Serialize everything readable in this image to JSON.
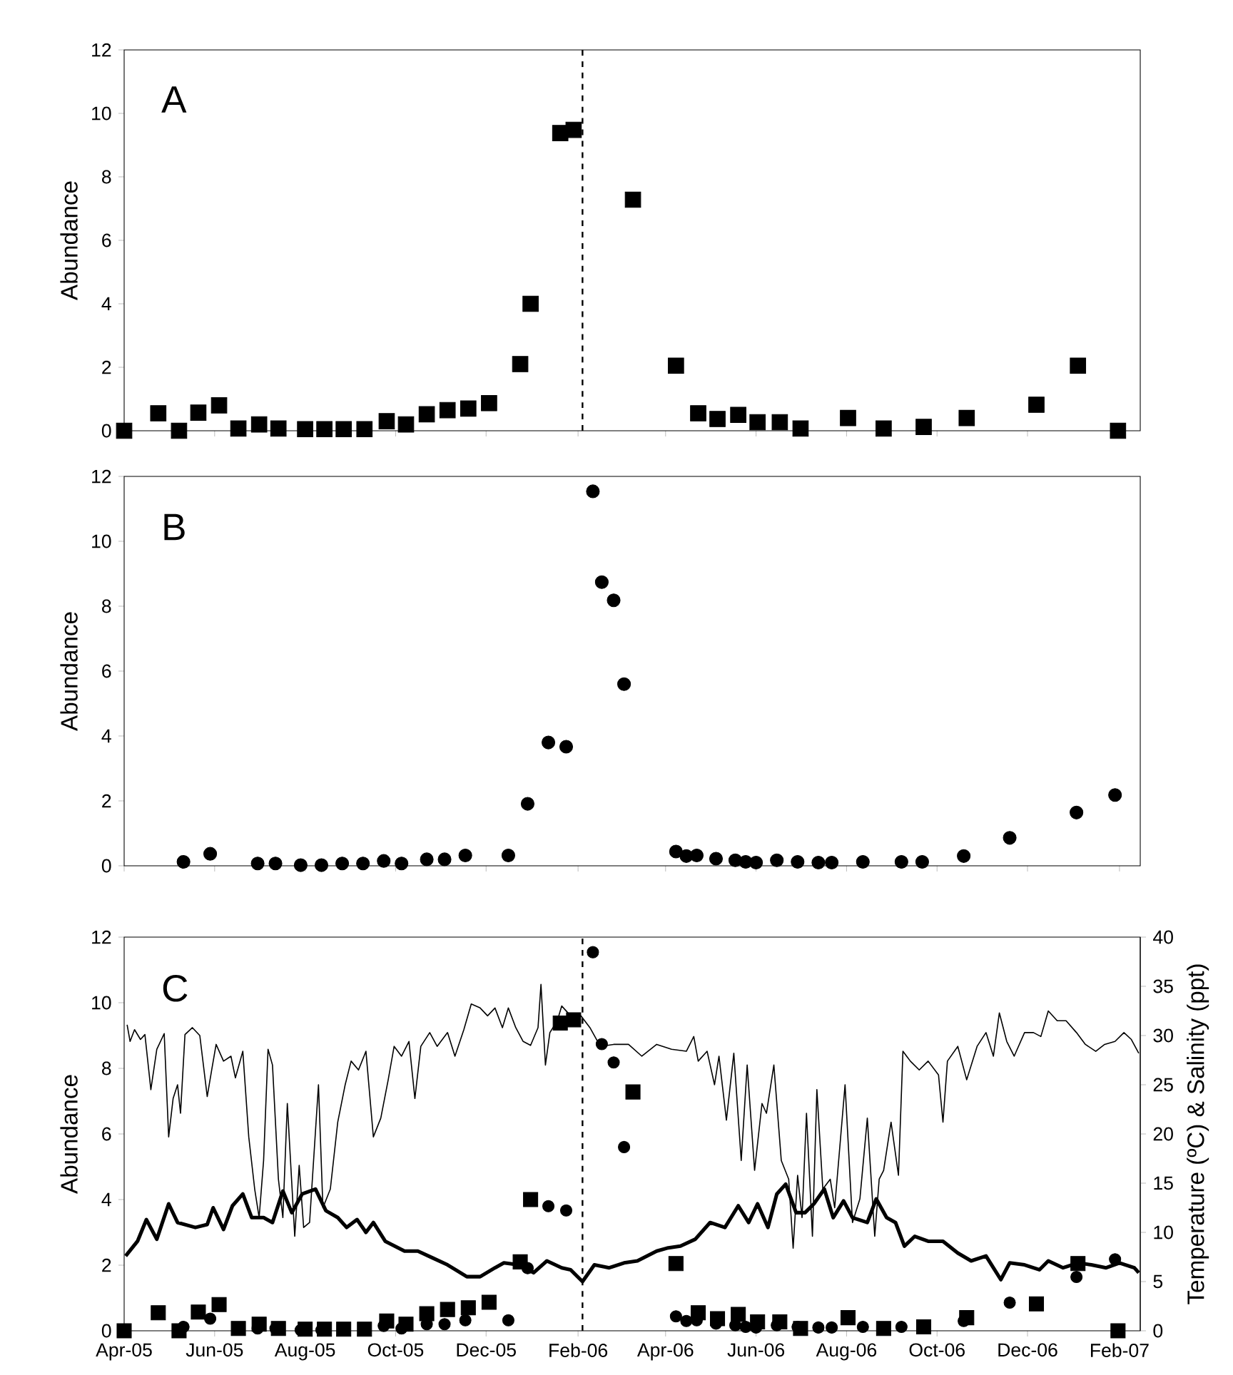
{
  "chart_data": [
    {
      "type": "scatter",
      "annotations": [
        "A"
      ],
      "ylabel": "Abundance",
      "xlim": [
        "2005-04-01",
        "2007-02-15"
      ],
      "xticks": [
        {
          "value": "2005-04-01",
          "label": null
        },
        {
          "value": "2005-06-01",
          "label": null
        },
        {
          "value": "2005-08-01",
          "label": null
        },
        {
          "value": "2005-10-01",
          "label": null
        },
        {
          "value": "2005-12-01",
          "label": null
        },
        {
          "value": "2006-02-01",
          "label": null
        },
        {
          "value": "2006-04-01",
          "label": null
        },
        {
          "value": "2006-06-01",
          "label": null
        },
        {
          "value": "2006-08-01",
          "label": null
        },
        {
          "value": "2006-10-01",
          "label": null
        },
        {
          "value": "2006-12-01",
          "label": null
        },
        {
          "value": "2007-02-01",
          "label": null
        }
      ],
      "ylim": [
        0,
        12
      ],
      "yticks": [
        0,
        2,
        4,
        6,
        8,
        10,
        12
      ],
      "tick_labels": "y",
      "ref_lines": [
        {
          "axis": "x",
          "value": "2006-02-04",
          "color": "#000000",
          "line_style": "dashed"
        }
      ],
      "series": [
        {
          "color": "#000000",
          "marker": "square",
          "x": [
            "2005-04-01",
            "2005-04-24",
            "2005-05-08",
            "2005-05-21",
            "2005-06-04",
            "2005-06-17",
            "2005-07-01",
            "2005-07-14",
            "2005-08-01",
            "2005-08-14",
            "2005-08-27",
            "2005-09-10",
            "2005-09-25",
            "2005-10-08",
            "2005-10-22",
            "2005-11-05",
            "2005-11-19",
            "2005-12-03",
            "2005-12-24",
            "2005-12-31",
            "2006-01-20",
            "2006-01-29",
            "2006-03-10",
            "2006-04-08",
            "2006-04-23",
            "2006-05-06",
            "2006-05-20",
            "2006-06-02",
            "2006-06-17",
            "2006-07-01",
            "2006-08-02",
            "2006-08-26",
            "2006-09-22",
            "2006-10-21",
            "2006-12-07",
            "2007-01-04",
            "2007-01-31"
          ],
          "values": [
            0,
            0.55,
            0,
            0.57,
            0.8,
            0.07,
            0.2,
            0.07,
            0.05,
            0.05,
            0.05,
            0.05,
            0.3,
            0.2,
            0.52,
            0.65,
            0.7,
            0.87,
            2.1,
            4.0,
            9.38,
            9.48,
            7.28,
            2.05,
            0.55,
            0.37,
            0.5,
            0.27,
            0.27,
            0.07,
            0.4,
            0.07,
            0.12,
            0.4,
            0.82,
            2.05,
            0
          ]
        }
      ]
    },
    {
      "type": "scatter",
      "annotations": [
        "B"
      ],
      "ylabel": "Abundance",
      "xlim": [
        "2005-04-01",
        "2007-02-15"
      ],
      "xticks": [
        {
          "value": "2005-04-01",
          "label": null
        },
        {
          "value": "2005-06-01",
          "label": null
        },
        {
          "value": "2005-08-01",
          "label": null
        },
        {
          "value": "2005-10-01",
          "label": null
        },
        {
          "value": "2005-12-01",
          "label": null
        },
        {
          "value": "2006-02-01",
          "label": null
        },
        {
          "value": "2006-04-01",
          "label": null
        },
        {
          "value": "2006-06-01",
          "label": null
        },
        {
          "value": "2006-08-01",
          "label": null
        },
        {
          "value": "2006-10-01",
          "label": null
        },
        {
          "value": "2006-12-01",
          "label": null
        },
        {
          "value": "2007-02-01",
          "label": null
        }
      ],
      "ylim": [
        0,
        12
      ],
      "yticks": [
        0,
        2,
        4,
        6,
        8,
        10,
        12
      ],
      "tick_labels": "y",
      "series": [
        {
          "color": "#000000",
          "marker": "circle",
          "x": [
            "2005-05-11",
            "2005-05-29",
            "2005-06-30",
            "2005-07-12",
            "2005-07-29",
            "2005-08-12",
            "2005-08-26",
            "2005-09-09",
            "2005-09-23",
            "2005-10-05",
            "2005-10-22",
            "2005-11-03",
            "2005-11-17",
            "2005-12-16",
            "2005-12-29",
            "2006-01-12",
            "2006-01-24",
            "2006-02-11",
            "2006-02-17",
            "2006-02-25",
            "2006-03-04",
            "2006-04-08",
            "2006-04-15",
            "2006-04-22",
            "2006-05-05",
            "2006-05-18",
            "2006-05-25",
            "2006-06-01",
            "2006-06-15",
            "2006-06-29",
            "2006-07-13",
            "2006-07-22",
            "2006-08-12",
            "2006-09-07",
            "2006-09-21",
            "2006-10-19",
            "2006-11-19",
            "2007-01-03",
            "2007-01-29"
          ],
          "values": [
            0.12,
            0.37,
            0.07,
            0.07,
            0.02,
            0.02,
            0.07,
            0.07,
            0.15,
            0.07,
            0.2,
            0.2,
            0.32,
            0.32,
            1.91,
            3.8,
            3.67,
            11.54,
            8.74,
            8.18,
            5.6,
            0.44,
            0.3,
            0.32,
            0.22,
            0.17,
            0.12,
            0.1,
            0.17,
            0.12,
            0.1,
            0.1,
            0.12,
            0.12,
            0.12,
            0.3,
            0.86,
            1.64,
            2.18
          ]
        }
      ]
    },
    {
      "type": "scatter",
      "annotations": [
        "C"
      ],
      "ylabel": "Abundance",
      "y2label": "Temperature (ºC) & Salinity (ppt)",
      "xlim": [
        "2005-04-01",
        "2007-02-15"
      ],
      "xticks": [
        {
          "value": "2005-04-01",
          "label": "Apr-05"
        },
        {
          "value": "2005-06-01",
          "label": "Jun-05"
        },
        {
          "value": "2005-08-01",
          "label": "Aug-05"
        },
        {
          "value": "2005-10-01",
          "label": "Oct-05"
        },
        {
          "value": "2005-12-01",
          "label": "Dec-05"
        },
        {
          "value": "2006-02-01",
          "label": "Feb-06"
        },
        {
          "value": "2006-04-01",
          "label": "Apr-06"
        },
        {
          "value": "2006-06-01",
          "label": "Jun-06"
        },
        {
          "value": "2006-08-01",
          "label": "Aug-06"
        },
        {
          "value": "2006-10-01",
          "label": "Oct-06"
        },
        {
          "value": "2006-12-01",
          "label": "Dec-06"
        },
        {
          "value": "2007-02-01",
          "label": "Feb-07"
        }
      ],
      "ylim": [
        0,
        12
      ],
      "yticks": [
        0,
        2,
        4,
        6,
        8,
        10,
        12
      ],
      "y2lim": [
        0,
        40
      ],
      "y2ticks": [
        0,
        5,
        10,
        15,
        20,
        25,
        30,
        35,
        40
      ],
      "ref_lines": [
        {
          "axis": "x",
          "value": "2006-02-04",
          "color": "#000000",
          "line_style": "dashed"
        }
      ],
      "series": [
        {
          "type": "line",
          "axis": "y2",
          "color": "#000000",
          "marker": "none",
          "line_style": "solid",
          "x": [
            "2005-04-03",
            "2005-04-05",
            "2005-04-08",
            "2005-04-12",
            "2005-04-15",
            "2005-04-19",
            "2005-04-23",
            "2005-04-28",
            "2005-05-01",
            "2005-05-04",
            "2005-05-07",
            "2005-05-09",
            "2005-05-12",
            "2005-05-17",
            "2005-05-22",
            "2005-05-27",
            "2005-05-30",
            "2005-06-02",
            "2005-06-07",
            "2005-06-12",
            "2005-06-15",
            "2005-06-20",
            "2005-06-24",
            "2005-06-28",
            "2005-07-01",
            "2005-07-04",
            "2005-07-07",
            "2005-07-10",
            "2005-07-14",
            "2005-07-17",
            "2005-07-20",
            "2005-07-25",
            "2005-07-28",
            "2005-07-31",
            "2005-08-04",
            "2005-08-10",
            "2005-08-13",
            "2005-08-18",
            "2005-08-23",
            "2005-08-28",
            "2005-09-01",
            "2005-09-06",
            "2005-09-11",
            "2005-09-16",
            "2005-09-21",
            "2005-09-26",
            "2005-09-30",
            "2005-10-05",
            "2005-10-10",
            "2005-10-14",
            "2005-10-18",
            "2005-10-24",
            "2005-10-29",
            "2005-11-05",
            "2005-11-10",
            "2005-11-16",
            "2005-11-21",
            "2005-11-27",
            "2005-12-02",
            "2005-12-07",
            "2005-12-12",
            "2005-12-16",
            "2005-12-21",
            "2005-12-26",
            "2005-12-31",
            "2006-01-05",
            "2006-01-07",
            "2006-01-10",
            "2006-01-13",
            "2006-01-18",
            "2006-01-21",
            "2006-01-27",
            "2006-02-03",
            "2006-02-09",
            "2006-02-16",
            "2006-02-25",
            "2006-03-07",
            "2006-03-16",
            "2006-03-26",
            "2006-04-05",
            "2006-04-15",
            "2006-04-20",
            "2006-04-23",
            "2006-04-29",
            "2006-05-04",
            "2006-05-07",
            "2006-05-12",
            "2006-05-17",
            "2006-05-22",
            "2006-05-26",
            "2006-05-31",
            "2006-06-05",
            "2006-06-08",
            "2006-06-13",
            "2006-06-18",
            "2006-06-23",
            "2006-06-26",
            "2006-06-29",
            "2006-07-02",
            "2006-07-05",
            "2006-07-09",
            "2006-07-12",
            "2006-07-16",
            "2006-07-21",
            "2006-07-24",
            "2006-07-31",
            "2006-08-05",
            "2006-08-10",
            "2006-08-15",
            "2006-08-20",
            "2006-08-23",
            "2006-08-26",
            "2006-08-31",
            "2006-09-05",
            "2006-09-08",
            "2006-09-13",
            "2006-09-19",
            "2006-09-25",
            "2006-10-02",
            "2006-10-05",
            "2006-10-08",
            "2006-10-15",
            "2006-10-21",
            "2006-10-28",
            "2006-11-03",
            "2006-11-08",
            "2006-11-12",
            "2006-11-17",
            "2006-11-22",
            "2006-11-29",
            "2006-12-05",
            "2006-12-10",
            "2006-12-15",
            "2006-12-21",
            "2006-12-27",
            "2007-01-03",
            "2007-01-09",
            "2007-01-16",
            "2007-01-22",
            "2007-01-29",
            "2007-02-04",
            "2007-02-09",
            "2007-02-14"
          ],
          "values": [
            31.1,
            29.4,
            30.6,
            29.6,
            30.1,
            24.5,
            28.6,
            30.2,
            19.7,
            23.6,
            25.0,
            22.1,
            30.1,
            30.8,
            30.0,
            23.8,
            26.5,
            29.1,
            27.4,
            27.9,
            25.7,
            28.4,
            19.7,
            14.4,
            11.5,
            17.3,
            28.6,
            27.0,
            15.4,
            11.5,
            23.1,
            9.6,
            16.8,
            10.5,
            11.0,
            25.0,
            12.5,
            14.4,
            21.2,
            25.0,
            27.4,
            26.5,
            28.4,
            19.7,
            21.6,
            25.5,
            28.9,
            27.9,
            29.4,
            23.6,
            28.9,
            30.3,
            28.9,
            30.3,
            27.9,
            30.6,
            33.2,
            32.8,
            32.0,
            32.8,
            30.8,
            32.8,
            30.8,
            29.4,
            29.0,
            30.8,
            35.2,
            27.0,
            30.3,
            31.5,
            33.0,
            32.0,
            32.0,
            30.8,
            28.9,
            29.1,
            29.1,
            27.9,
            29.1,
            28.6,
            28.4,
            29.9,
            27.4,
            28.4,
            25.0,
            27.9,
            21.4,
            28.2,
            17.3,
            27.0,
            16.3,
            23.1,
            22.1,
            27.0,
            17.3,
            15.4,
            8.4,
            15.8,
            11.5,
            22.1,
            9.6,
            24.5,
            14.4,
            15.4,
            12.5,
            25.0,
            11.0,
            13.4,
            21.6,
            9.6,
            15.4,
            16.3,
            21.2,
            15.8,
            28.4,
            27.4,
            26.5,
            27.4,
            26.0,
            21.2,
            27.4,
            28.9,
            25.5,
            28.9,
            30.3,
            27.9,
            32.3,
            29.4,
            27.9,
            30.3,
            30.3,
            29.9,
            32.5,
            31.5,
            31.5,
            30.3,
            29.1,
            28.4,
            29.1,
            29.4,
            30.3,
            29.6,
            28.2
          ]
        },
        {
          "type": "line",
          "axis": "y2",
          "color": "#000000",
          "marker": "none",
          "line_style": "solid",
          "x": [
            "2005-04-02",
            "2005-04-10",
            "2005-04-16",
            "2005-04-23",
            "2005-05-01",
            "2005-05-07",
            "2005-05-19",
            "2005-05-27",
            "2005-05-31",
            "2005-06-07",
            "2005-06-13",
            "2005-06-20",
            "2005-06-26",
            "2005-07-04",
            "2005-07-10",
            "2005-07-17",
            "2005-07-23",
            "2005-07-30",
            "2005-08-08",
            "2005-08-15",
            "2005-08-23",
            "2005-08-29",
            "2005-09-05",
            "2005-09-11",
            "2005-09-16",
            "2005-09-24",
            "2005-10-07",
            "2005-10-16",
            "2005-10-26",
            "2005-11-05",
            "2005-11-18",
            "2005-11-27",
            "2005-12-07",
            "2005-12-13",
            "2005-12-23",
            "2006-01-02",
            "2006-01-11",
            "2006-01-21",
            "2006-01-27",
            "2006-02-04",
            "2006-02-12",
            "2006-02-22",
            "2006-03-04",
            "2006-03-13",
            "2006-03-26",
            "2006-04-02",
            "2006-04-11",
            "2006-04-21",
            "2006-05-01",
            "2006-05-11",
            "2006-05-20",
            "2006-05-27",
            "2006-06-02",
            "2006-06-09",
            "2006-06-15",
            "2006-06-21",
            "2006-06-28",
            "2006-07-04",
            "2006-07-10",
            "2006-07-17",
            "2006-07-23",
            "2006-07-30",
            "2006-08-05",
            "2006-08-15",
            "2006-08-21",
            "2006-08-28",
            "2006-09-03",
            "2006-09-09",
            "2006-09-16",
            "2006-09-25",
            "2006-10-05",
            "2006-10-15",
            "2006-10-24",
            "2006-11-03",
            "2006-11-13",
            "2006-11-19",
            "2006-11-29",
            "2006-12-09",
            "2006-12-15",
            "2006-12-25",
            "2007-01-04",
            "2007-01-13",
            "2007-01-23",
            "2007-02-01",
            "2007-02-11",
            "2007-02-14"
          ],
          "values": [
            7.6,
            9.1,
            11.3,
            9.3,
            12.9,
            11.0,
            10.5,
            10.8,
            12.5,
            10.3,
            12.7,
            13.9,
            11.5,
            11.5,
            11.0,
            14.2,
            12.0,
            13.9,
            14.4,
            12.2,
            11.5,
            10.5,
            11.3,
            10.0,
            11.0,
            9.1,
            8.1,
            8.1,
            7.4,
            6.7,
            5.5,
            5.5,
            6.4,
            6.9,
            6.7,
            5.9,
            7.1,
            6.4,
            6.2,
            5.0,
            6.7,
            6.4,
            6.9,
            7.1,
            8.1,
            8.4,
            8.6,
            9.3,
            11.0,
            10.5,
            12.7,
            11.0,
            12.9,
            10.5,
            13.9,
            14.9,
            12.0,
            12.0,
            12.9,
            14.4,
            11.5,
            13.2,
            11.5,
            11.0,
            13.4,
            11.5,
            11.0,
            8.6,
            9.6,
            9.1,
            9.1,
            7.9,
            7.1,
            7.6,
            5.2,
            6.9,
            6.7,
            6.2,
            7.1,
            6.4,
            6.9,
            6.7,
            6.4,
            6.9,
            6.4,
            5.9
          ]
        },
        {
          "color": "#000000",
          "marker": "square",
          "x": [
            "2005-04-01",
            "2005-04-24",
            "2005-05-08",
            "2005-05-21",
            "2005-06-04",
            "2005-06-17",
            "2005-07-01",
            "2005-07-14",
            "2005-08-01",
            "2005-08-14",
            "2005-08-27",
            "2005-09-10",
            "2005-09-25",
            "2005-10-08",
            "2005-10-22",
            "2005-11-05",
            "2005-11-19",
            "2005-12-03",
            "2005-12-24",
            "2005-12-31",
            "2006-01-20",
            "2006-01-29",
            "2006-03-10",
            "2006-04-08",
            "2006-04-23",
            "2006-05-06",
            "2006-05-20",
            "2006-06-02",
            "2006-06-17",
            "2006-07-01",
            "2006-08-02",
            "2006-08-26",
            "2006-09-22",
            "2006-10-21",
            "2006-12-07",
            "2007-01-04",
            "2007-01-31"
          ],
          "values": [
            0,
            0.55,
            0,
            0.57,
            0.8,
            0.07,
            0.2,
            0.07,
            0.05,
            0.05,
            0.05,
            0.05,
            0.3,
            0.2,
            0.52,
            0.65,
            0.7,
            0.87,
            2.1,
            4.0,
            9.38,
            9.48,
            7.28,
            2.05,
            0.55,
            0.37,
            0.5,
            0.27,
            0.27,
            0.07,
            0.4,
            0.07,
            0.12,
            0.4,
            0.82,
            2.05,
            0
          ]
        },
        {
          "color": "#000000",
          "marker": "circle",
          "x": [
            "2005-05-11",
            "2005-05-29",
            "2005-06-30",
            "2005-07-12",
            "2005-07-29",
            "2005-08-12",
            "2005-08-26",
            "2005-09-09",
            "2005-09-23",
            "2005-10-05",
            "2005-10-22",
            "2005-11-03",
            "2005-11-17",
            "2005-12-16",
            "2005-12-29",
            "2006-01-12",
            "2006-01-24",
            "2006-02-11",
            "2006-02-17",
            "2006-02-25",
            "2006-03-04",
            "2006-04-08",
            "2006-04-15",
            "2006-04-22",
            "2006-05-05",
            "2006-05-18",
            "2006-05-25",
            "2006-06-01",
            "2006-06-15",
            "2006-06-29",
            "2006-07-13",
            "2006-07-22",
            "2006-08-12",
            "2006-09-07",
            "2006-09-21",
            "2006-10-19",
            "2006-11-19",
            "2007-01-03",
            "2007-01-29"
          ],
          "values": [
            0.12,
            0.37,
            0.07,
            0.07,
            0.02,
            0.02,
            null,
            null,
            0.15,
            0.07,
            0.2,
            0.2,
            0.32,
            0.32,
            1.91,
            3.8,
            3.67,
            11.54,
            8.74,
            8.18,
            5.6,
            0.44,
            0.3,
            0.32,
            0.22,
            0.17,
            0.12,
            0.1,
            0.17,
            0.12,
            0.1,
            0.1,
            0.12,
            0.12,
            null,
            0.3,
            0.86,
            1.64,
            2.18
          ]
        }
      ]
    }
  ]
}
